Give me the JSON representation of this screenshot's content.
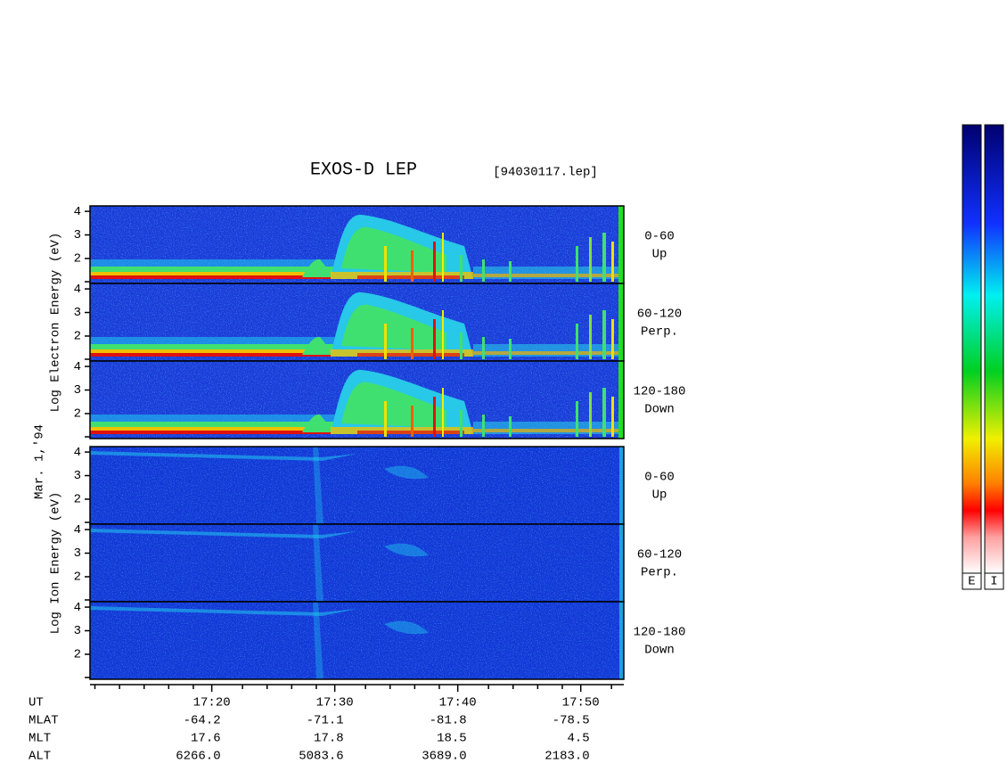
{
  "chart_data": {
    "type": "spectrogram",
    "title": "EXOS-D LEP",
    "file_label": "[94030117.lep]",
    "date_label": "Mar. 1,'94",
    "ylim": [
      0.94,
      4.23
    ],
    "yticks": [
      2,
      3,
      4
    ],
    "xlim": [
      1030.1,
      1073.5
    ],
    "xticks": [
      {
        "value": 1040,
        "label": "17:20"
      },
      {
        "value": 1050,
        "label": "17:30"
      },
      {
        "value": 1060,
        "label": "17:40"
      },
      {
        "value": 1070,
        "label": "17:50"
      }
    ],
    "xminorticks": [
      1030.5,
      1032.5,
      1034.5,
      1036.5,
      1038.5,
      1042.5,
      1044.5,
      1046.5,
      1048.5,
      1052.5,
      1054.5,
      1056.5,
      1058.5,
      1062.5,
      1064.5,
      1066.5,
      1068.5,
      1072.5
    ],
    "groups": [
      {
        "ylabel": "Log Electron Energy (eV)",
        "kind": "electron",
        "panels": [
          {
            "label": [
              "0-60",
              "Up"
            ]
          },
          {
            "label": [
              "60-120",
              "Perp."
            ]
          },
          {
            "label": [
              "120-180",
              "Down"
            ]
          }
        ]
      },
      {
        "ylabel": "Log Ion Energy (eV)",
        "kind": "ion",
        "panels": [
          {
            "label": [
              "0-60",
              "Up"
            ]
          },
          {
            "label": [
              "60-120",
              "Perp."
            ]
          },
          {
            "label": [
              "120-180",
              "Down"
            ]
          }
        ]
      }
    ],
    "xrow_label": "UT",
    "ephemeris": [
      {
        "label": "MLAT",
        "values": [
          "-64.2",
          "-71.1",
          "-81.8",
          "-78.5"
        ]
      },
      {
        "label": "MLT",
        "values": [
          "17.6",
          "17.8",
          "18.5",
          "4.5"
        ]
      },
      {
        "label": "ALT",
        "values": [
          "6266.0",
          "5083.6",
          "3689.0",
          "2183.0"
        ]
      }
    ],
    "colorbars": [
      "E",
      "I"
    ]
  }
}
